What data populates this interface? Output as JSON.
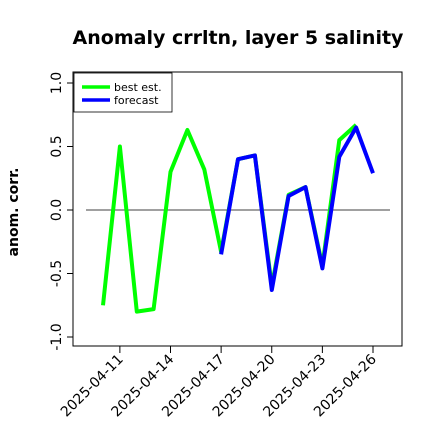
{
  "chart_data": {
    "type": "line",
    "title": "Anomaly crrltn, layer 5 salinity",
    "xlabel": "",
    "ylabel": "anom. corr.",
    "ylim": [
      -1.0,
      1.0
    ],
    "yticks": [
      "-1.0",
      "-0.5",
      "0.0",
      "0.5",
      "1.0"
    ],
    "ytick_values": [
      -1.0,
      -0.5,
      0.0,
      0.5,
      1.0
    ],
    "x": [
      "2025-04-10",
      "2025-04-11",
      "2025-04-12",
      "2025-04-13",
      "2025-04-14",
      "2025-04-15",
      "2025-04-16",
      "2025-04-17",
      "2025-04-18",
      "2025-04-19",
      "2025-04-20",
      "2025-04-21",
      "2025-04-22",
      "2025-04-23",
      "2025-04-24",
      "2025-04-25",
      "2025-04-26"
    ],
    "xticks": [
      "2025-04-11",
      "2025-04-14",
      "2025-04-17",
      "2025-04-20",
      "2025-04-23",
      "2025-04-26"
    ],
    "highlight_tick": "2025-04-17",
    "highlight_color": "#228B22",
    "reference_line": 0.0,
    "legend_position": "top-left",
    "grid": false,
    "series": [
      {
        "name": "best est.",
        "color": "#00ff00",
        "values": [
          -0.75,
          0.5,
          -0.8,
          -0.78,
          0.3,
          0.63,
          0.32,
          -0.33,
          0.4,
          0.43,
          -0.6,
          0.12,
          0.18,
          -0.44,
          0.55,
          0.67,
          null
        ]
      },
      {
        "name": "forecast",
        "color": "#0000ff",
        "values": [
          null,
          null,
          null,
          null,
          null,
          null,
          null,
          -0.35,
          0.4,
          0.43,
          -0.63,
          0.11,
          0.18,
          -0.46,
          0.42,
          0.65,
          0.29
        ]
      }
    ]
  }
}
